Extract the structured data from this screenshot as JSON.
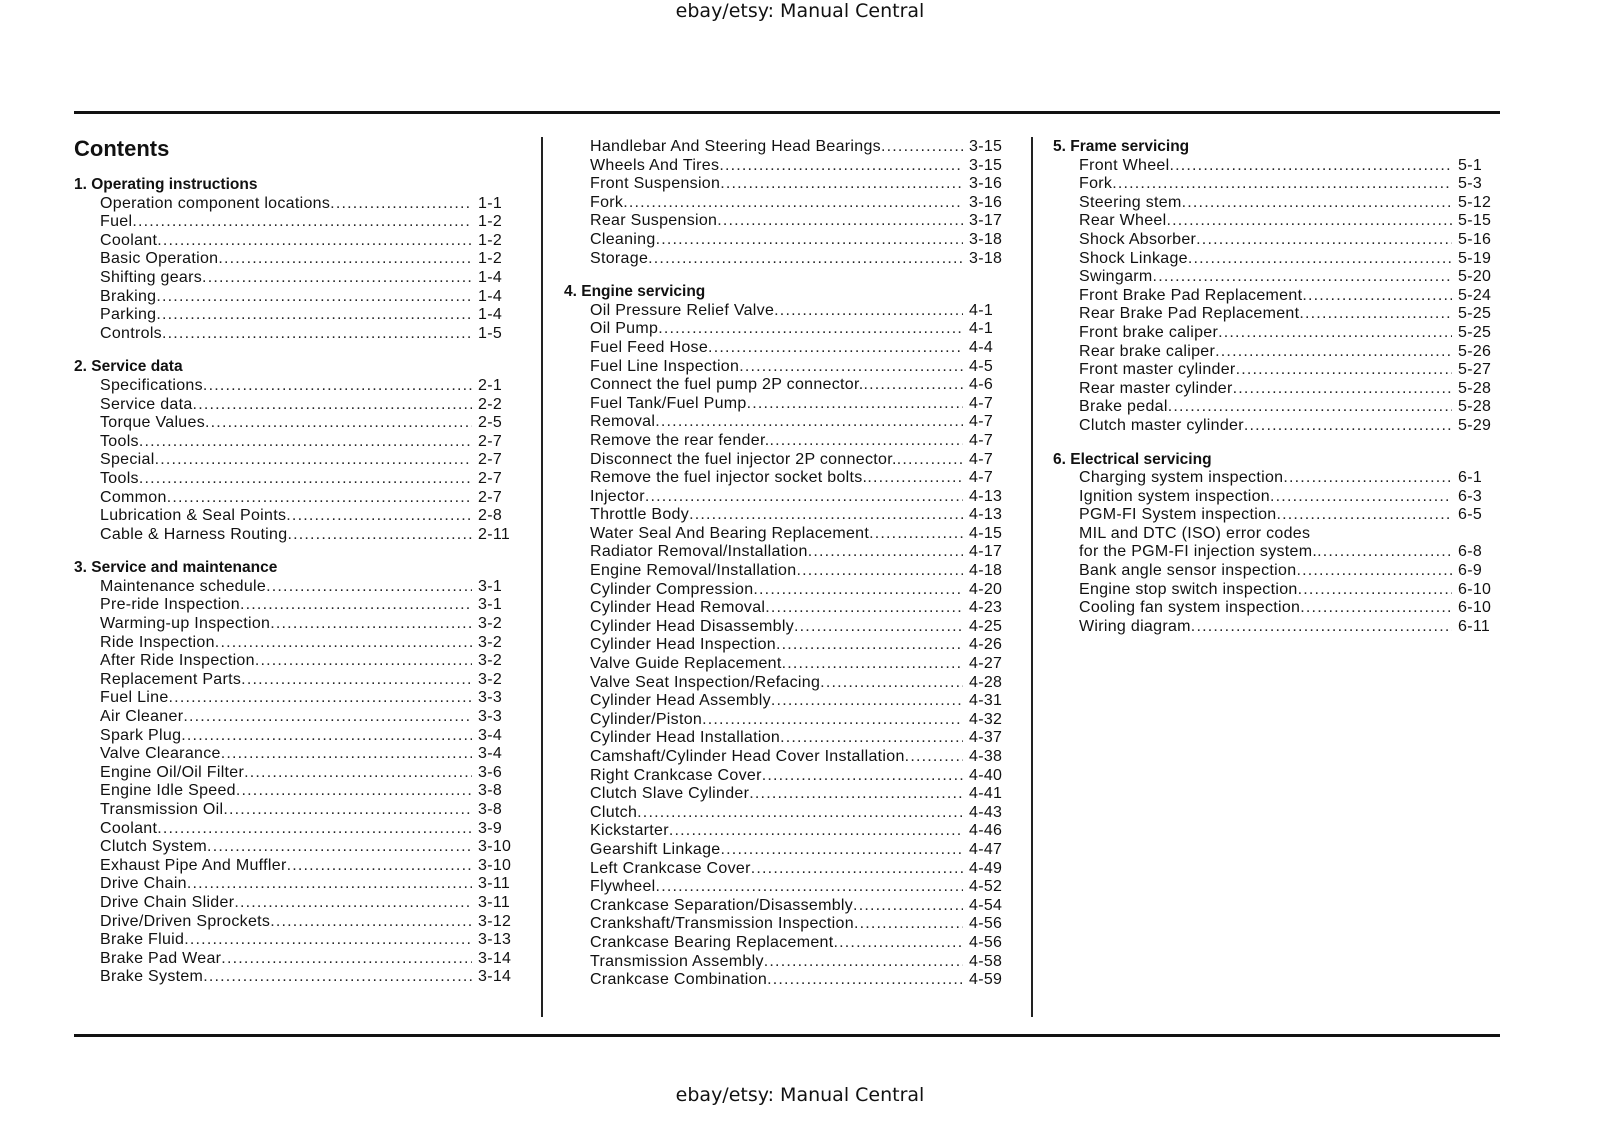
{
  "header_text": "ebay/etsy: Manual Central",
  "footer_text": "ebay/etsy: Manual Central",
  "title": "Contents",
  "columns": [
    [
      {
        "heading": "1. Operating instructions",
        "items": [
          {
            "label": "Operation component locations",
            "page": "1-1"
          },
          {
            "label": "Fuel",
            "page": "1-2"
          },
          {
            "label": "Coolant",
            "page": "1-2"
          },
          {
            "label": "Basic Operation",
            "page": "1-2"
          },
          {
            "label": "Shifting gears",
            "page": "1-4"
          },
          {
            "label": "Braking",
            "page": "1-4"
          },
          {
            "label": "Parking",
            "page": "1-4"
          },
          {
            "label": "Controls",
            "page": "1-5"
          }
        ]
      },
      {
        "heading": "2. Service data",
        "items": [
          {
            "label": "Specifications",
            "page": "2-1"
          },
          {
            "label": "Service data",
            "page": "2-2"
          },
          {
            "label": "Torque Values",
            "page": "2-5"
          },
          {
            "label": "Tools",
            "page": "2-7"
          },
          {
            "label": "Special",
            "page": "2-7"
          },
          {
            "label": "Tools",
            "page": "2-7"
          },
          {
            "label": "Common",
            "page": "2-7"
          },
          {
            "label": "Lubrication & Seal Points",
            "page": "2-8"
          },
          {
            "label": "Cable & Harness Routing",
            "page": "2-11"
          }
        ]
      },
      {
        "heading": "3. Service and maintenance",
        "items": [
          {
            "label": "Maintenance schedule",
            "page": "3-1"
          },
          {
            "label": "Pre-ride Inspection",
            "page": "3-1"
          },
          {
            "label": "Warming-up Inspection",
            "page": "3-2"
          },
          {
            "label": "Ride Inspection",
            "page": "3-2"
          },
          {
            "label": "After Ride Inspection",
            "page": "3-2"
          },
          {
            "label": "Replacement Parts",
            "page": "3-2"
          },
          {
            "label": "Fuel Line",
            "page": "3-3"
          },
          {
            "label": "Air Cleaner",
            "page": "3-3"
          },
          {
            "label": "Spark Plug",
            "page": "3-4"
          },
          {
            "label": "Valve Clearance",
            "page": "3-4"
          },
          {
            "label": "Engine Oil/Oil Filter",
            "page": "3-6"
          },
          {
            "label": "Engine Idle Speed",
            "page": "3-8"
          },
          {
            "label": "Transmission Oil",
            "page": "3-8"
          },
          {
            "label": "Coolant",
            "page": "3-9"
          },
          {
            "label": "Clutch System",
            "page": "3-10"
          },
          {
            "label": "Exhaust Pipe And Muffler",
            "page": "3-10"
          },
          {
            "label": "Drive Chain",
            "page": "3-11"
          },
          {
            "label": "Drive Chain Slider",
            "page": "3-11"
          },
          {
            "label": "Drive/Driven Sprockets",
            "page": "3-12"
          },
          {
            "label": "Brake Fluid",
            "page": "3-13"
          },
          {
            "label": "Brake Pad Wear",
            "page": "3-14"
          },
          {
            "label": "Brake System",
            "page": "3-14"
          }
        ]
      }
    ],
    [
      {
        "heading": "",
        "items": [
          {
            "label": "Handlebar And Steering Head Bearings",
            "page": "3-15"
          },
          {
            "label": "Wheels And Tires",
            "page": "3-15"
          },
          {
            "label": "Front Suspension",
            "page": "3-16"
          },
          {
            "label": "Fork",
            "page": "3-16"
          },
          {
            "label": "Rear Suspension",
            "page": "3-17"
          },
          {
            "label": "Cleaning",
            "page": "3-18"
          },
          {
            "label": "Storage",
            "page": "3-18"
          }
        ]
      },
      {
        "heading": "4. Engine servicing",
        "items": [
          {
            "label": "Oil Pressure Relief Valve",
            "page": "4-1"
          },
          {
            "label": "Oil Pump",
            "page": "4-1"
          },
          {
            "label": "Fuel Feed Hose",
            "page": "4-4"
          },
          {
            "label": "Fuel Line Inspection",
            "page": "4-5"
          },
          {
            "label": "Connect the fuel pump 2P connector.",
            "page": "4-6"
          },
          {
            "label": "Fuel Tank/Fuel Pump",
            "page": "4-7"
          },
          {
            "label": "Removal",
            "page": "4-7"
          },
          {
            "label": "Remove the rear fender.",
            "page": "4-7"
          },
          {
            "label": "Disconnect the fuel injector 2P connector.",
            "page": "4-7"
          },
          {
            "label": "Remove the fuel injector socket bolts.",
            "page": "4-7"
          },
          {
            "label": "Injector",
            "page": "4-13"
          },
          {
            "label": "Throttle Body",
            "page": "4-13"
          },
          {
            "label": "Water Seal And Bearing Replacement",
            "page": "4-15"
          },
          {
            "label": "Radiator Removal/Installation",
            "page": "4-17"
          },
          {
            "label": "Engine Removal/Installation",
            "page": "4-18"
          },
          {
            "label": "Cylinder Compression",
            "page": "4-20"
          },
          {
            "label": "Cylinder Head Removal",
            "page": "4-23"
          },
          {
            "label": "Cylinder Head Disassembly",
            "page": "4-25"
          },
          {
            "label": "Cylinder Head Inspection",
            "page": "4-26"
          },
          {
            "label": "Valve Guide Replacement",
            "page": "4-27"
          },
          {
            "label": "Valve Seat Inspection/Refacing",
            "page": "4-28"
          },
          {
            "label": "Cylinder Head Assembly",
            "page": "4-31"
          },
          {
            "label": "Cylinder/Piston",
            "page": "4-32"
          },
          {
            "label": "Cylinder Head Installation",
            "page": "4-37"
          },
          {
            "label": "Camshaft/Cylinder Head Cover Installation",
            "page": "4-38"
          },
          {
            "label": "Right Crankcase Cover",
            "page": "4-40"
          },
          {
            "label": "Clutch Slave Cylinder",
            "page": "4-41"
          },
          {
            "label": "Clutch",
            "page": "4-43"
          },
          {
            "label": "Kickstarter",
            "page": "4-46"
          },
          {
            "label": "Gearshift Linkage",
            "page": "4-47"
          },
          {
            "label": "Left Crankcase Cover",
            "page": "4-49"
          },
          {
            "label": "Flywheel",
            "page": "4-52"
          },
          {
            "label": "Crankcase Separation/Disassembly",
            "page": "4-54"
          },
          {
            "label": "Crankshaft/Transmission Inspection",
            "page": "4-56"
          },
          {
            "label": "Crankcase Bearing Replacement",
            "page": "4-56"
          },
          {
            "label": "Transmission Assembly",
            "page": "4-58"
          },
          {
            "label": "Crankcase Combination",
            "page": "4-59"
          }
        ]
      }
    ],
    [
      {
        "heading": "5. Frame servicing",
        "items": [
          {
            "label": "Front Wheel",
            "page": "5-1"
          },
          {
            "label": "Fork",
            "page": "5-3"
          },
          {
            "label": "Steering stem",
            "page": "5-12"
          },
          {
            "label": "Rear Wheel",
            "page": "5-15"
          },
          {
            "label": "Shock Absorber",
            "page": "5-16"
          },
          {
            "label": "Shock Linkage",
            "page": "5-19"
          },
          {
            "label": "Swingarm",
            "page": "5-20"
          },
          {
            "label": "Front Brake Pad Replacement",
            "page": "5-24"
          },
          {
            "label": "Rear Brake Pad Replacement",
            "page": "5-25"
          },
          {
            "label": "Front brake caliper",
            "page": "5-25"
          },
          {
            "label": "Rear brake caliper",
            "page": "5-26"
          },
          {
            "label": "Front master cylinder",
            "page": "5-27"
          },
          {
            "label": "Rear master cylinder",
            "page": "5-28"
          },
          {
            "label": "Brake pedal",
            "page": "5-28"
          },
          {
            "label": "Clutch master cylinder",
            "page": "5-29"
          }
        ]
      },
      {
        "heading": "6. Electrical servicing",
        "items": [
          {
            "label": "Charging system inspection",
            "page": "6-1"
          },
          {
            "label": "Ignition system inspection",
            "page": "6-3"
          },
          {
            "label": "PGM-FI System inspection",
            "page": "6-5"
          },
          {
            "label": "MIL and DTC (ISO) error codes",
            "page": ""
          },
          {
            "label": "for the PGM-FI injection system.",
            "page": "6-8"
          },
          {
            "label": "Bank angle sensor inspection",
            "page": "6-9"
          },
          {
            "label": "Engine stop switch inspection",
            "page": "6-10"
          },
          {
            "label": "Cooling fan system inspection",
            "page": "6-10"
          },
          {
            "label": "Wiring diagram",
            "page": "6-11"
          }
        ]
      }
    ]
  ]
}
